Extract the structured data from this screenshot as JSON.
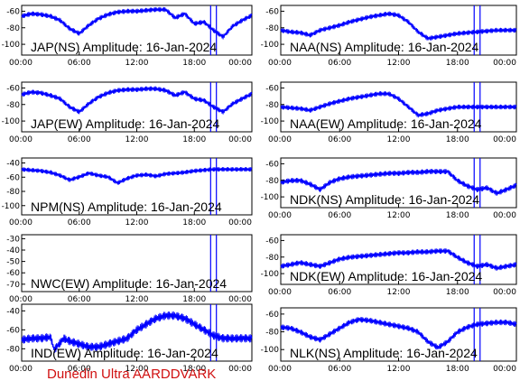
{
  "footer_text": "Dunedin Ultra AARDDVARK",
  "colors": {
    "trace": "#0000ff",
    "marker": "#0000ff",
    "footer": "#d01010"
  },
  "chart_data": [
    {
      "type": "line",
      "title": "JAP(NS) Amplitude: 16-Jan-2024",
      "xlim": [
        "00:00",
        "24:00"
      ],
      "ylim": [
        -110,
        -50
      ],
      "yticks": [
        "-60",
        "-80",
        "-100"
      ],
      "xticks": [
        "00:00",
        "06:00",
        "12:00",
        "18:00",
        "00:00"
      ],
      "markers_hours": [
        19.7,
        20.3
      ],
      "series": [
        {
          "x_hours": [
            0,
            1,
            2,
            3,
            4,
            5,
            6,
            7,
            8,
            9,
            10,
            11,
            12,
            13,
            14,
            15,
            16,
            17,
            18,
            19,
            20,
            21,
            22,
            23,
            24
          ],
          "values": [
            -63,
            -60,
            -61,
            -63,
            -68,
            -78,
            -84,
            -74,
            -66,
            -61,
            -58,
            -57,
            -57,
            -56,
            -55,
            -55,
            -65,
            -60,
            -72,
            -70,
            -80,
            -88,
            -75,
            -68,
            -62
          ]
        }
      ]
    },
    {
      "type": "line",
      "title": "NAA(NS) Amplitude: 16-Jan-2024",
      "xlim": [
        "00:00",
        "24:00"
      ],
      "ylim": [
        -110,
        -50
      ],
      "yticks": [
        "-60",
        "-80",
        "-100"
      ],
      "xticks": [
        "00:00",
        "06:00",
        "12:00",
        "18:00",
        "00:00"
      ],
      "markers_hours": [
        19.7,
        20.3
      ],
      "series": [
        {
          "x_hours": [
            0,
            1,
            2,
            3,
            4,
            5,
            6,
            7,
            8,
            9,
            10,
            11,
            12,
            13,
            14,
            15,
            16,
            17,
            18,
            19,
            20,
            21,
            22,
            23,
            24
          ],
          "values": [
            -80,
            -82,
            -83,
            -86,
            -80,
            -77,
            -74,
            -70,
            -67,
            -64,
            -62,
            -60,
            -62,
            -70,
            -82,
            -90,
            -88,
            -86,
            -84,
            -83,
            -82,
            -81,
            -80,
            -80,
            -80
          ]
        }
      ]
    },
    {
      "type": "line",
      "title": "JAP(EW) Amplitude: 16-Jan-2024",
      "xlim": [
        "00:00",
        "24:00"
      ],
      "ylim": [
        -110,
        -50
      ],
      "yticks": [
        "-60",
        "-80",
        "-100"
      ],
      "xticks": [
        "00:00",
        "06:00",
        "12:00",
        "18:00",
        "00:00"
      ],
      "markers_hours": [
        19.7,
        20.3
      ],
      "series": [
        {
          "x_hours": [
            0,
            1,
            2,
            3,
            4,
            5,
            6,
            7,
            8,
            9,
            10,
            11,
            12,
            13,
            14,
            15,
            16,
            17,
            18,
            19,
            20,
            21,
            22,
            23,
            24
          ],
          "values": [
            -65,
            -62,
            -63,
            -66,
            -70,
            -80,
            -86,
            -76,
            -68,
            -63,
            -60,
            -59,
            -59,
            -58,
            -58,
            -60,
            -66,
            -62,
            -70,
            -72,
            -80,
            -86,
            -76,
            -70,
            -64
          ]
        }
      ]
    },
    {
      "type": "line",
      "title": "NAA(EW) Amplitude: 16-Jan-2024",
      "xlim": [
        "00:00",
        "24:00"
      ],
      "ylim": [
        -110,
        -50
      ],
      "yticks": [
        "-60",
        "-80",
        "-100"
      ],
      "xticks": [
        "00:00",
        "06:00",
        "12:00",
        "18:00",
        "00:00"
      ],
      "markers_hours": [
        19.7,
        20.3
      ],
      "series": [
        {
          "x_hours": [
            0,
            1,
            2,
            3,
            4,
            5,
            6,
            7,
            8,
            9,
            10,
            11,
            12,
            13,
            14,
            15,
            16,
            17,
            18,
            19,
            20,
            21,
            22,
            23,
            24
          ],
          "values": [
            -80,
            -81,
            -82,
            -84,
            -80,
            -76,
            -73,
            -70,
            -68,
            -66,
            -64,
            -64,
            -70,
            -80,
            -90,
            -88,
            -84,
            -82,
            -80,
            -80,
            -80,
            -80,
            -80,
            -80,
            -80
          ]
        }
      ]
    },
    {
      "type": "line",
      "title": "NPM(NS) Amplitude: 16-Jan-2024",
      "xlim": [
        "00:00",
        "24:00"
      ],
      "ylim": [
        -110,
        -35
      ],
      "yticks": [
        "-40",
        "-60",
        "-80",
        "-100"
      ],
      "xticks": [
        "00:00",
        "06:00",
        "12:00",
        "18:00",
        "00:00"
      ],
      "markers_hours": [
        19.7,
        20.3
      ],
      "series": [
        {
          "x_hours": [
            0,
            1,
            2,
            3,
            4,
            5,
            6,
            7,
            8,
            9,
            10,
            11,
            12,
            13,
            14,
            15,
            16,
            17,
            18,
            19,
            20,
            21,
            22,
            23,
            24
          ],
          "values": [
            -50,
            -51,
            -52,
            -54,
            -58,
            -64,
            -60,
            -55,
            -58,
            -60,
            -68,
            -62,
            -58,
            -57,
            -59,
            -56,
            -55,
            -54,
            -52,
            -51,
            -50,
            -50,
            -50,
            -50,
            -50
          ]
        }
      ]
    },
    {
      "type": "line",
      "title": "NDK(NS) Amplitude: 16-Jan-2024",
      "xlim": [
        "00:00",
        "24:00"
      ],
      "ylim": [
        -110,
        -55
      ],
      "yticks": [
        "-60",
        "-80",
        "-100"
      ],
      "xticks": [
        "00:00",
        "06:00",
        "12:00",
        "18:00",
        "00:00"
      ],
      "markers_hours": [
        19.7,
        20.3
      ],
      "series": [
        {
          "x_hours": [
            0,
            1,
            2,
            3,
            4,
            5,
            6,
            7,
            8,
            9,
            10,
            11,
            12,
            13,
            14,
            15,
            16,
            17,
            18,
            19,
            20,
            21,
            22,
            23,
            24
          ],
          "values": [
            -82,
            -80,
            -80,
            -84,
            -90,
            -82,
            -78,
            -76,
            -75,
            -74,
            -73,
            -72,
            -72,
            -71,
            -71,
            -70,
            -70,
            -70,
            -80,
            -86,
            -90,
            -88,
            -94,
            -90,
            -85
          ]
        }
      ]
    },
    {
      "type": "line",
      "title": "NWC(EW) Amplitude: 16-Jan-2024",
      "xlim": [
        "00:00",
        "24:00"
      ],
      "ylim": [
        -70,
        -25
      ],
      "yticks": [
        "-30",
        "-40",
        "-50",
        "-60",
        "-70"
      ],
      "xticks": [
        "00:00",
        "06:00",
        "12:00",
        "18:00",
        "00:00"
      ],
      "markers_hours": [
        19.7,
        20.3
      ],
      "series": []
    },
    {
      "type": "line",
      "title": "NDK(EW) Amplitude: 16-Jan-2024",
      "xlim": [
        "00:00",
        "24:00"
      ],
      "ylim": [
        -110,
        -55
      ],
      "yticks": [
        "-60",
        "-80",
        "-100"
      ],
      "xticks": [
        "00:00",
        "06:00",
        "12:00",
        "18:00",
        "00:00"
      ],
      "markers_hours": [
        19.7,
        20.3
      ],
      "series": [
        {
          "x_hours": [
            0,
            1,
            2,
            3,
            4,
            5,
            6,
            7,
            8,
            9,
            10,
            11,
            12,
            13,
            14,
            15,
            16,
            17,
            18,
            19,
            20,
            21,
            22,
            23,
            24
          ],
          "values": [
            -90,
            -88,
            -86,
            -88,
            -90,
            -86,
            -82,
            -80,
            -79,
            -78,
            -77,
            -76,
            -75,
            -75,
            -74,
            -74,
            -73,
            -73,
            -80,
            -86,
            -90,
            -88,
            -92,
            -90,
            -88
          ]
        }
      ]
    },
    {
      "type": "line",
      "title": "IND(EW) Amplitude: 16-Jan-2024",
      "xlim": [
        "00:00",
        "24:00"
      ],
      "ylim": [
        -80,
        -40
      ],
      "yticks": [
        "-40",
        "-60",
        "-80"
      ],
      "xticks": [
        "00:00",
        "06:00",
        "12:00",
        "18:00",
        "00:00"
      ],
      "markers_hours": [
        19.7,
        20.3
      ],
      "series": [
        {
          "x_hours": [
            0,
            1,
            2,
            3,
            3.4,
            4.4,
            5,
            6,
            7,
            8,
            9,
            10,
            11,
            12,
            13,
            14,
            15,
            16,
            17,
            18,
            19,
            20,
            21,
            22,
            23,
            24
          ],
          "values": [
            -65,
            -64,
            -64,
            -63,
            -72,
            -64,
            -66,
            -68,
            -70,
            -70,
            -68,
            -66,
            -64,
            -58,
            -54,
            -50,
            -48,
            -48,
            -50,
            -54,
            -58,
            -62,
            -64,
            -64,
            -64,
            -64
          ]
        }
      ]
    },
    {
      "type": "line",
      "title": "NLK(NS) Amplitude: 16-Jan-2024",
      "xlim": [
        "00:00",
        "24:00"
      ],
      "ylim": [
        -110,
        -55
      ],
      "yticks": [
        "-60",
        "-80",
        "-100"
      ],
      "xticks": [
        "00:00",
        "06:00",
        "12:00",
        "18:00",
        "00:00"
      ],
      "markers_hours": [
        19.7,
        20.3
      ],
      "series": [
        {
          "x_hours": [
            0,
            1,
            2,
            3,
            4,
            5,
            6,
            7,
            8,
            9,
            10,
            11,
            12,
            13,
            14,
            15,
            16,
            17,
            18,
            19,
            20,
            21,
            22,
            23,
            24
          ],
          "values": [
            -75,
            -76,
            -80,
            -85,
            -88,
            -82,
            -76,
            -70,
            -67,
            -68,
            -70,
            -72,
            -74,
            -76,
            -80,
            -90,
            -96,
            -90,
            -80,
            -75,
            -72,
            -71,
            -70,
            -70,
            -72
          ]
        }
      ]
    }
  ]
}
